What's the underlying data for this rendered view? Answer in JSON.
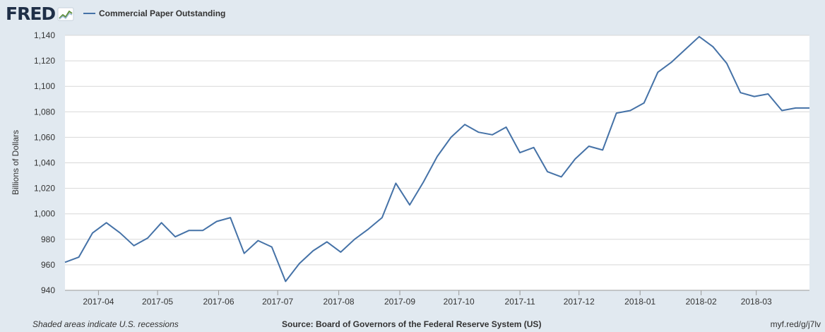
{
  "header": {
    "logo_text": "FRED",
    "logo_icon": "chart-trend-icon",
    "series_label": "Commercial Paper Outstanding"
  },
  "footer": {
    "recession_note": "Shaded areas indicate U.S. recessions",
    "source": "Source: Board of Governors of the Federal Reserve System (US)",
    "short_url": "myf.red/g/j7lv"
  },
  "colors": {
    "line": "#4572a7",
    "background": "#e1e9f0",
    "plot_background": "#ffffff",
    "grid": "#d8d8d8",
    "logo": "#1f2f47"
  },
  "chart_data": {
    "type": "line",
    "title": "",
    "xlabel": "",
    "ylabel": "Billions of Dollars",
    "ylim": [
      940,
      1140
    ],
    "y_ticks": [
      940,
      960,
      980,
      1000,
      1020,
      1040,
      1060,
      1080,
      1100,
      1120,
      1140
    ],
    "y_tick_labels": [
      "940",
      "960",
      "980",
      "1,000",
      "1,020",
      "1,040",
      "1,060",
      "1,080",
      "1,100",
      "1,120",
      "1,140"
    ],
    "x_tick_labels": [
      "2017-04",
      "2017-05",
      "2017-06",
      "2017-07",
      "2017-08",
      "2017-09",
      "2017-10",
      "2017-11",
      "2017-12",
      "2018-01",
      "2018-02",
      "2018-03"
    ],
    "x_tick_dates": [
      "2017-04-01",
      "2017-05-01",
      "2017-06-01",
      "2017-07-01",
      "2017-08-01",
      "2017-09-01",
      "2017-10-01",
      "2017-11-01",
      "2017-12-01",
      "2018-01-01",
      "2018-02-01",
      "2018-03-01"
    ],
    "xlim": [
      "2017-03-15",
      "2018-03-28"
    ],
    "grid": true,
    "legend": "top-left",
    "series": [
      {
        "name": "Commercial Paper Outstanding",
        "x": [
          "2017-03-15",
          "2017-03-22",
          "2017-03-29",
          "2017-04-05",
          "2017-04-12",
          "2017-04-19",
          "2017-04-26",
          "2017-05-03",
          "2017-05-10",
          "2017-05-17",
          "2017-05-24",
          "2017-05-31",
          "2017-06-07",
          "2017-06-14",
          "2017-06-21",
          "2017-06-28",
          "2017-07-05",
          "2017-07-12",
          "2017-07-19",
          "2017-07-26",
          "2017-08-02",
          "2017-08-09",
          "2017-08-16",
          "2017-08-23",
          "2017-08-30",
          "2017-09-06",
          "2017-09-13",
          "2017-09-20",
          "2017-09-27",
          "2017-10-04",
          "2017-10-11",
          "2017-10-18",
          "2017-10-25",
          "2017-11-01",
          "2017-11-08",
          "2017-11-15",
          "2017-11-22",
          "2017-11-29",
          "2017-12-06",
          "2017-12-13",
          "2017-12-20",
          "2017-12-27",
          "2018-01-03",
          "2018-01-10",
          "2018-01-17",
          "2018-01-24",
          "2018-01-31",
          "2018-02-07",
          "2018-02-14",
          "2018-02-21",
          "2018-02-28",
          "2018-03-07",
          "2018-03-14",
          "2018-03-21",
          "2018-03-28"
        ],
        "values": [
          962,
          966,
          985,
          993,
          985,
          975,
          981,
          993,
          982,
          987,
          987,
          994,
          997,
          969,
          979,
          974,
          947,
          961,
          971,
          978,
          970,
          980,
          988,
          997,
          1024,
          1007,
          1025,
          1045,
          1060,
          1070,
          1064,
          1062,
          1068,
          1048,
          1052,
          1033,
          1029,
          1043,
          1053,
          1050,
          1079,
          1081,
          1087,
          1111,
          1119,
          1129,
          1139,
          1131,
          1118,
          1095,
          1092,
          1094,
          1081,
          1083,
          1083
        ]
      }
    ]
  }
}
